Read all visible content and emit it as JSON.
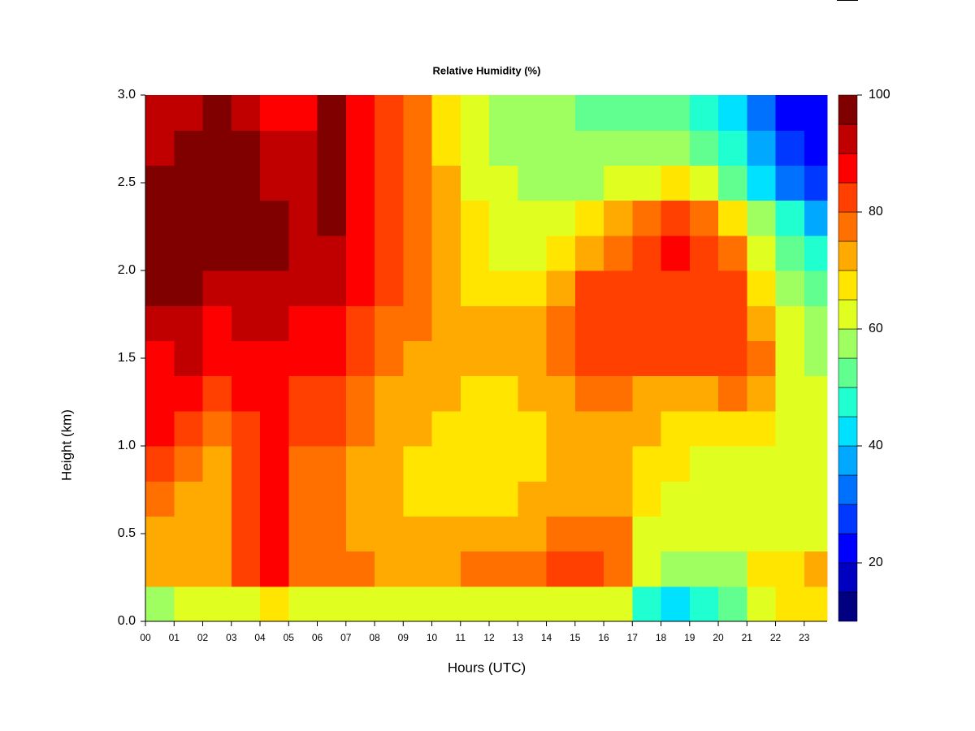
{
  "chart_data": {
    "type": "heatmap",
    "title": "Relative Humidity (%)",
    "xlabel": "Hours (UTC)",
    "ylabel": "Height (km)",
    "x": [
      0.5,
      1.5,
      2.5,
      3.5,
      4.5,
      5.5,
      6.5,
      7.5,
      8.5,
      9.5,
      10.5,
      11.5,
      12.5,
      13.5,
      14.5,
      15.5,
      16.5,
      17.5,
      18.5,
      19.5,
      20.5,
      21.5,
      22.5,
      23.5
    ],
    "y": [
      0.1,
      0.3,
      0.5,
      0.7,
      0.9,
      1.1,
      1.3,
      1.5,
      1.7,
      1.9,
      2.1,
      2.3,
      2.5,
      2.7,
      2.9
    ],
    "values": [
      [
        55,
        60,
        60,
        62,
        66,
        62,
        64,
        64,
        64,
        64,
        64,
        64,
        64,
        64,
        64,
        62,
        60,
        48,
        44,
        46,
        50,
        62,
        65,
        66
      ],
      [
        70,
        72,
        70,
        80,
        88,
        78,
        78,
        76,
        74,
        72,
        74,
        76,
        78,
        78,
        80,
        80,
        78,
        60,
        56,
        56,
        58,
        68,
        68,
        70
      ],
      [
        74,
        72,
        70,
        80,
        86,
        76,
        76,
        74,
        72,
        70,
        72,
        72,
        74,
        74,
        76,
        78,
        76,
        64,
        62,
        62,
        60,
        64,
        64,
        64
      ],
      [
        78,
        74,
        72,
        80,
        86,
        76,
        76,
        72,
        70,
        68,
        68,
        68,
        68,
        70,
        72,
        74,
        72,
        66,
        64,
        62,
        62,
        62,
        62,
        62
      ],
      [
        84,
        78,
        74,
        82,
        86,
        78,
        78,
        74,
        70,
        68,
        66,
        66,
        66,
        68,
        70,
        74,
        72,
        68,
        66,
        64,
        64,
        62,
        60,
        60
      ],
      [
        86,
        82,
        78,
        84,
        86,
        80,
        80,
        76,
        72,
        70,
        68,
        66,
        66,
        68,
        70,
        74,
        72,
        70,
        68,
        66,
        68,
        66,
        62,
        60
      ],
      [
        88,
        85,
        80,
        85,
        86,
        82,
        82,
        78,
        74,
        72,
        70,
        68,
        68,
        70,
        72,
        76,
        76,
        74,
        72,
        72,
        75,
        70,
        64,
        60
      ],
      [
        88,
        90,
        85,
        88,
        88,
        85,
        85,
        80,
        76,
        74,
        72,
        70,
        70,
        72,
        76,
        80,
        82,
        82,
        82,
        84,
        82,
        75,
        62,
        58
      ],
      [
        92,
        94,
        88,
        90,
        90,
        88,
        88,
        82,
        78,
        76,
        72,
        70,
        70,
        72,
        78,
        82,
        84,
        84,
        84,
        84,
        82,
        72,
        60,
        55
      ],
      [
        97,
        95,
        90,
        92,
        92,
        90,
        90,
        85,
        80,
        76,
        72,
        68,
        66,
        66,
        72,
        80,
        82,
        82,
        82,
        82,
        80,
        65,
        55,
        50
      ],
      [
        98,
        98,
        95,
        96,
        95,
        92,
        92,
        88,
        82,
        78,
        74,
        68,
        64,
        62,
        66,
        72,
        78,
        82,
        85,
        80,
        75,
        62,
        52,
        45
      ],
      [
        97,
        97,
        96,
        96,
        96,
        92,
        95,
        88,
        82,
        78,
        72,
        66,
        62,
        60,
        62,
        65,
        70,
        78,
        80,
        78,
        68,
        55,
        45,
        38
      ],
      [
        95,
        97,
        97,
        96,
        92,
        90,
        95,
        85,
        80,
        75,
        70,
        64,
        60,
        57,
        57,
        57,
        60,
        62,
        65,
        60,
        52,
        42,
        30,
        28
      ],
      [
        92,
        95,
        97,
        95,
        90,
        90,
        96,
        85,
        80,
        75,
        68,
        62,
        58,
        55,
        55,
        55,
        55,
        55,
        55,
        50,
        45,
        35,
        25,
        22
      ],
      [
        90,
        92,
        95,
        92,
        88,
        88,
        95,
        85,
        80,
        75,
        68,
        62,
        58,
        55,
        55,
        52,
        52,
        52,
        52,
        48,
        40,
        30,
        22,
        20
      ]
    ],
    "xlim": [
      0,
      23.8
    ],
    "ylim": [
      0,
      3
    ],
    "xticks": [
      {
        "value": 0,
        "label": "00"
      },
      {
        "value": 1,
        "label": "01"
      },
      {
        "value": 2,
        "label": "02"
      },
      {
        "value": 3,
        "label": "03"
      },
      {
        "value": 4,
        "label": "04"
      },
      {
        "value": 5,
        "label": "05"
      },
      {
        "value": 6,
        "label": "06"
      },
      {
        "value": 7,
        "label": "07"
      },
      {
        "value": 8,
        "label": "08"
      },
      {
        "value": 9,
        "label": "09"
      },
      10,
      11,
      12,
      13,
      14,
      15,
      16,
      17,
      18,
      19,
      20,
      21,
      22,
      23
    ],
    "yticks": [
      {
        "value": 0,
        "label": "0.0"
      },
      0.5,
      {
        "value": 1,
        "label": "1.0"
      },
      1.5,
      {
        "value": 2,
        "label": "2.0"
      },
      2.5,
      {
        "value": 3,
        "label": "3.0"
      }
    ],
    "zlim": [
      10,
      100
    ],
    "zticks": [
      20,
      40,
      60,
      80,
      100
    ],
    "colors": [
      "#000080",
      "#0000C0",
      "#0000FF",
      "#0038FF",
      "#0070FF",
      "#00A8FF",
      "#00E0FF",
      "#20FFD0",
      "#60FF90",
      "#A0FF60",
      "#E0FF20",
      "#FFE500",
      "#FFAA00",
      "#FF7000",
      "#FF4000",
      "#FF0000",
      "#C00000",
      "#800000"
    ]
  }
}
